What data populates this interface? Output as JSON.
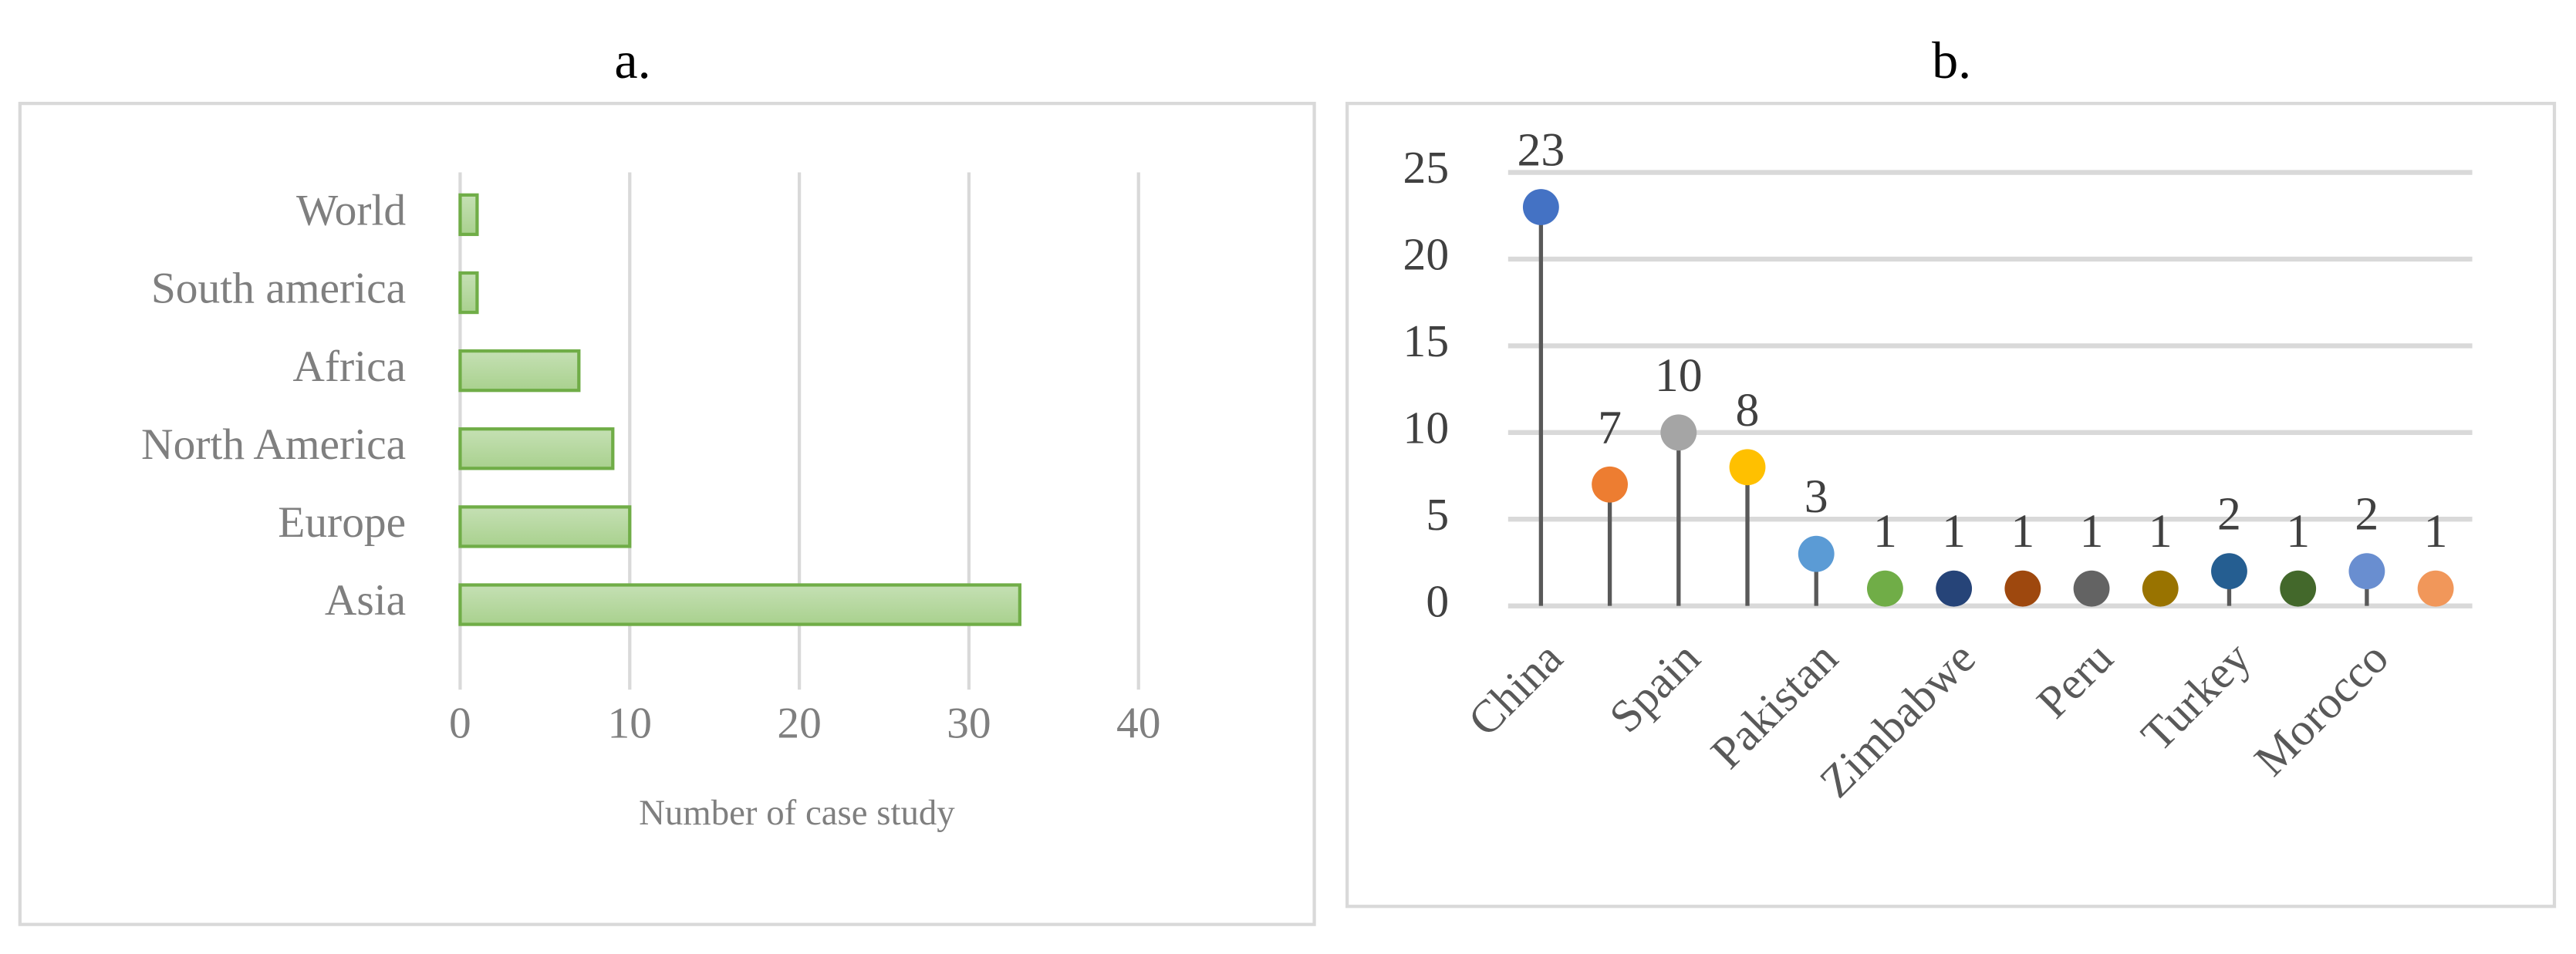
{
  "chart_data": [
    {
      "type": "barh",
      "title": "a.",
      "x_label": "Number of case study",
      "categories": [
        "World",
        "South america",
        "Africa",
        "North America",
        "Europe",
        "Asia"
      ],
      "values": [
        1,
        1,
        7,
        9,
        10,
        33
      ],
      "color": "#70ad47",
      "xlim": [
        0,
        40
      ],
      "xticks": [
        0,
        10,
        20,
        30,
        40
      ],
      "grid": true
    },
    {
      "type": "lollipop",
      "title": "b.",
      "categories": [
        "China",
        null,
        "Spain",
        null,
        "Pakistan",
        null,
        "Zimbabwe",
        null,
        "Peru",
        null,
        "Turkey",
        null,
        "Morocco",
        null
      ],
      "values": [
        23,
        7,
        10,
        8,
        3,
        1,
        1,
        1,
        1,
        1,
        2,
        1,
        2,
        1
      ],
      "colors": [
        "#4472c4",
        "#ed7d31",
        "#a5a5a5",
        "#ffc000",
        "#5b9bd5",
        "#70ad47",
        "#264478",
        "#9e480e",
        "#636363",
        "#997300",
        "#255e91",
        "#43682b",
        "#698ed0",
        "#f1975a"
      ],
      "ylim": [
        0,
        25
      ],
      "yticks": [
        0,
        5,
        10,
        15,
        20,
        25
      ],
      "grid": true
    }
  ]
}
